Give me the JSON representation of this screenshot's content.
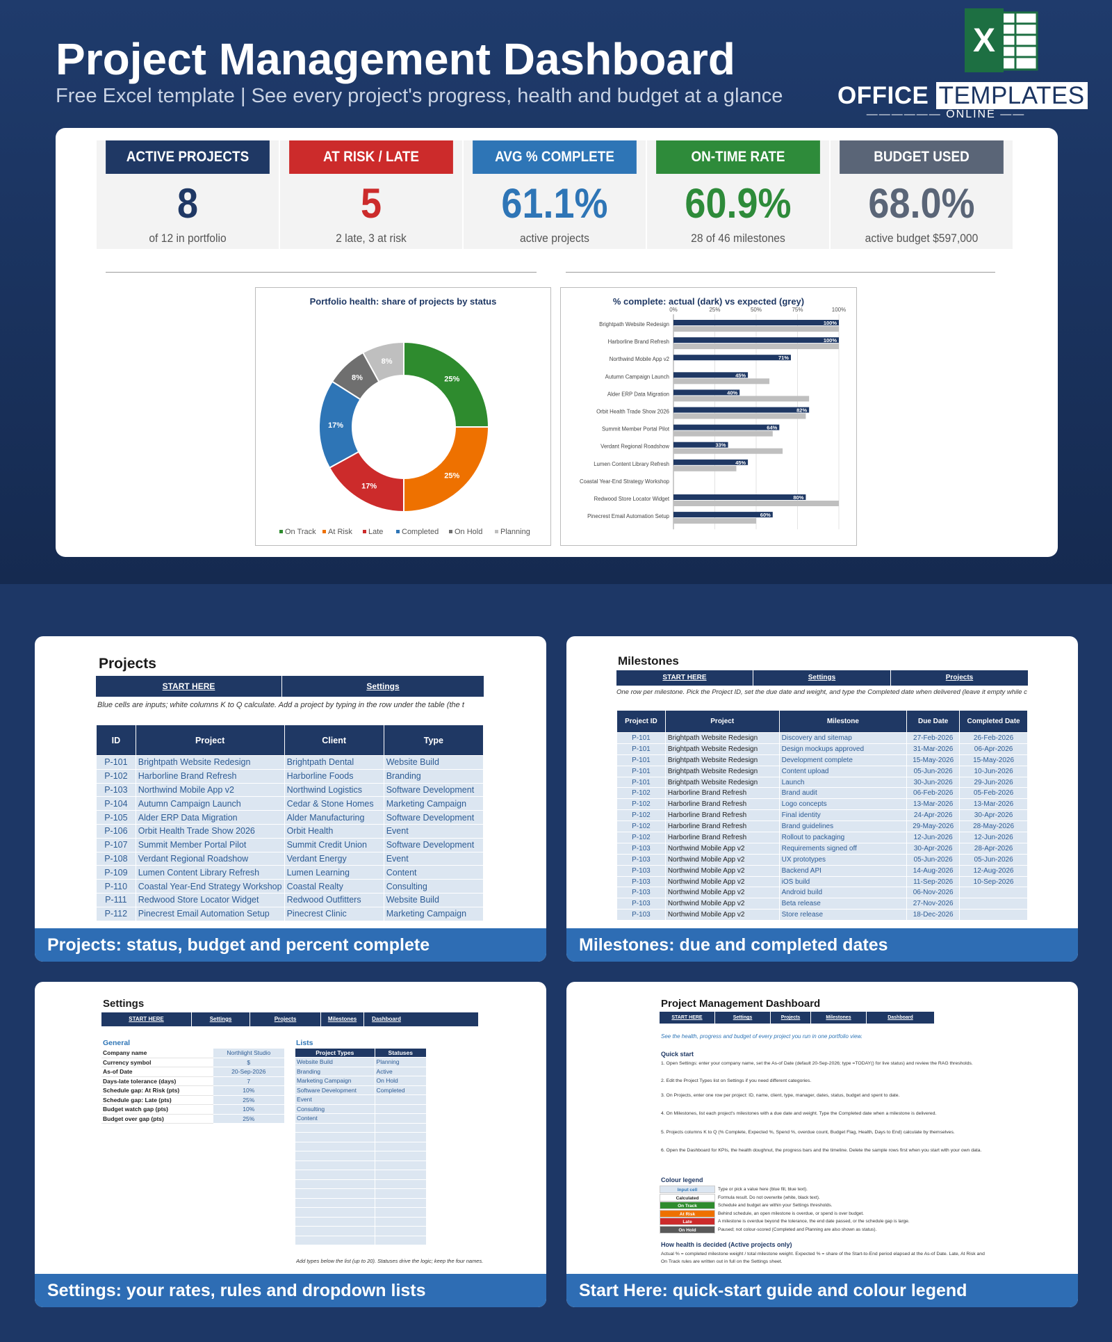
{
  "header": {
    "title": "Project Management Dashboard",
    "subtitle": "Free Excel template  |  See every project's progress, health and budget at a glance",
    "brand_office": "OFFICE",
    "brand_templates": "TEMPLATES",
    "brand_online": "ONLINE",
    "excel_logo_letter": "X"
  },
  "kpis": [
    {
      "label": "ACTIVE PROJECTS",
      "value": "8",
      "sub": "of 12 in portfolio",
      "color": "#1f3864",
      "value_color": "#1f3864"
    },
    {
      "label": "AT RISK / LATE",
      "value": "5",
      "sub": "2 late, 3 at risk",
      "color": "#cc2b2b",
      "value_color": "#cc2b2b"
    },
    {
      "label": "AVG % COMPLETE",
      "value": "61.1%",
      "sub": "active projects",
      "color": "#2e75b6",
      "value_color": "#2e75b6"
    },
    {
      "label": "ON-TIME RATE",
      "value": "60.9%",
      "sub": "28 of 46 milestones",
      "color": "#2e8b3a",
      "value_color": "#2e8b3a"
    },
    {
      "label": "BUDGET USED",
      "value": "68.0%",
      "sub": "active budget $597,000",
      "color": "#5a6577",
      "value_color": "#5a6577"
    }
  ],
  "chart_data": [
    {
      "type": "pie",
      "title": "Portfolio health: share of projects by status",
      "categories": [
        "On Track",
        "At Risk",
        "Late",
        "Completed",
        "On Hold",
        "Planning"
      ],
      "values": [
        25,
        25,
        17,
        17,
        8,
        8
      ],
      "labels": [
        "25%",
        "25%",
        "17%",
        "17%",
        "8%",
        "8%"
      ],
      "colors": [
        "#2e8b2e",
        "#ee7100",
        "#cc2b2b",
        "#2e75b6",
        "#6f6f6f",
        "#bfbfbf"
      ],
      "legend": "bottom"
    },
    {
      "type": "bar",
      "title": "% complete: actual (dark) vs expected (grey)",
      "categories": [
        "Brightpath Website Redesign",
        "Harborline Brand Refresh",
        "Northwind Mobile App v2",
        "Autumn Campaign Launch",
        "Alder ERP Data Migration",
        "Orbit Health Trade Show 2026",
        "Summit Member Portal Pilot",
        "Verdant Regional Roadshow",
        "Lumen Content Library Refresh",
        "Coastal Year-End Strategy Workshop",
        "Redwood Store Locator Widget",
        "Pinecrest Email Automation Setup"
      ],
      "series": [
        {
          "values": [
            100,
            100,
            71,
            45,
            40,
            82,
            64,
            33,
            45,
            null,
            80,
            60
          ],
          "color": "#1f3864"
        },
        {
          "values": [
            100,
            100,
            null,
            58,
            82,
            80,
            60,
            66,
            38,
            null,
            100,
            50
          ],
          "color": "#bfbfbf"
        }
      ],
      "xlim": [
        0,
        100
      ],
      "x_ticks": [
        "0%",
        "25%",
        "50%",
        "75%",
        "100%"
      ],
      "grid": true
    }
  ],
  "projects_sheet": {
    "title": "Projects",
    "nav": [
      "START HERE",
      "Settings"
    ],
    "note": "Blue cells are inputs; white columns K to Q calculate. Add a project by typing in the row under the table (the t",
    "columns": [
      "ID",
      "Project",
      "Client",
      "Type"
    ],
    "rows": [
      [
        "P-101",
        "Brightpath Website Redesign",
        "Brightpath Dental",
        "Website Build"
      ],
      [
        "P-102",
        "Harborline Brand Refresh",
        "Harborline Foods",
        "Branding"
      ],
      [
        "P-103",
        "Northwind Mobile App v2",
        "Northwind Logistics",
        "Software Development"
      ],
      [
        "P-104",
        "Autumn Campaign Launch",
        "Cedar & Stone Homes",
        "Marketing Campaign"
      ],
      [
        "P-105",
        "Alder ERP Data Migration",
        "Alder Manufacturing",
        "Software Development"
      ],
      [
        "P-106",
        "Orbit Health Trade Show 2026",
        "Orbit Health",
        "Event"
      ],
      [
        "P-107",
        "Summit Member Portal Pilot",
        "Summit Credit Union",
        "Software Development"
      ],
      [
        "P-108",
        "Verdant Regional Roadshow",
        "Verdant Energy",
        "Event"
      ],
      [
        "P-109",
        "Lumen Content Library Refresh",
        "Lumen Learning",
        "Content"
      ],
      [
        "P-110",
        "Coastal Year-End Strategy Workshop",
        "Coastal Realty",
        "Consulting"
      ],
      [
        "P-111",
        "Redwood Store Locator Widget",
        "Redwood Outfitters",
        "Website Build"
      ],
      [
        "P-112",
        "Pinecrest Email Automation Setup",
        "Pinecrest Clinic",
        "Marketing Campaign"
      ]
    ],
    "caption": "Projects: status, budget and percent complete"
  },
  "milestones_sheet": {
    "title": "Milestones",
    "nav": [
      "START HERE",
      "Settings",
      "Projects"
    ],
    "note": "One row per milestone. Pick the Project ID, set the due date and weight, and type the Completed date when delivered (leave it empty while c",
    "columns": [
      "Project ID",
      "Project",
      "Milestone",
      "Due Date",
      "Completed Date"
    ],
    "rows": [
      [
        "P-101",
        "Brightpath Website Redesign",
        "Discovery and sitemap",
        "27-Feb-2026",
        "26-Feb-2026"
      ],
      [
        "P-101",
        "Brightpath Website Redesign",
        "Design mockups approved",
        "31-Mar-2026",
        "06-Apr-2026"
      ],
      [
        "P-101",
        "Brightpath Website Redesign",
        "Development complete",
        "15-May-2026",
        "15-May-2026"
      ],
      [
        "P-101",
        "Brightpath Website Redesign",
        "Content upload",
        "05-Jun-2026",
        "10-Jun-2026"
      ],
      [
        "P-101",
        "Brightpath Website Redesign",
        "Launch",
        "30-Jun-2026",
        "29-Jun-2026"
      ],
      [
        "P-102",
        "Harborline Brand Refresh",
        "Brand audit",
        "06-Feb-2026",
        "05-Feb-2026"
      ],
      [
        "P-102",
        "Harborline Brand Refresh",
        "Logo concepts",
        "13-Mar-2026",
        "13-Mar-2026"
      ],
      [
        "P-102",
        "Harborline Brand Refresh",
        "Final identity",
        "24-Apr-2026",
        "30-Apr-2026"
      ],
      [
        "P-102",
        "Harborline Brand Refresh",
        "Brand guidelines",
        "29-May-2026",
        "28-May-2026"
      ],
      [
        "P-102",
        "Harborline Brand Refresh",
        "Rollout to packaging",
        "12-Jun-2026",
        "12-Jun-2026"
      ],
      [
        "P-103",
        "Northwind Mobile App v2",
        "Requirements signed off",
        "30-Apr-2026",
        "28-Apr-2026"
      ],
      [
        "P-103",
        "Northwind Mobile App v2",
        "UX prototypes",
        "05-Jun-2026",
        "05-Jun-2026"
      ],
      [
        "P-103",
        "Northwind Mobile App v2",
        "Backend API",
        "14-Aug-2026",
        "12-Aug-2026"
      ],
      [
        "P-103",
        "Northwind Mobile App v2",
        "iOS build",
        "11-Sep-2026",
        "10-Sep-2026"
      ],
      [
        "P-103",
        "Northwind Mobile App v2",
        "Android build",
        "06-Nov-2026",
        ""
      ],
      [
        "P-103",
        "Northwind Mobile App v2",
        "Beta release",
        "27-Nov-2026",
        ""
      ],
      [
        "P-103",
        "Northwind Mobile App v2",
        "Store release",
        "18-Dec-2026",
        ""
      ]
    ],
    "caption": "Milestones: due and completed dates"
  },
  "settings_sheet": {
    "title": "Settings",
    "nav": [
      "START HERE",
      "Settings",
      "Projects",
      "Milestones",
      "Dashboard"
    ],
    "general_label": "General",
    "general": [
      [
        "Company name",
        "Northlight Studio"
      ],
      [
        "Currency symbol",
        "$"
      ],
      [
        "As-of Date",
        "20-Sep-2026"
      ],
      [
        "Days-late tolerance (days)",
        "7"
      ],
      [
        "Schedule gap: At Risk (pts)",
        "10%"
      ],
      [
        "Schedule gap: Late (pts)",
        "25%"
      ],
      [
        "Budget watch gap (pts)",
        "10%"
      ],
      [
        "Budget over gap (pts)",
        "25%"
      ]
    ],
    "lists_label": "Lists",
    "list_columns": [
      "Project Types",
      "Statuses"
    ],
    "project_types": [
      "Website Build",
      "Branding",
      "Marketing Campaign",
      "Software Development",
      "Event",
      "Consulting",
      "Content"
    ],
    "statuses": [
      "Planning",
      "Active",
      "On Hold",
      "Completed"
    ],
    "footnote": "Add types below the list (up to 20). Statuses drive the logic; keep the four names.",
    "caption": "Settings: your rates, rules and dropdown lists"
  },
  "start_sheet": {
    "title": "Project Management Dashboard",
    "nav": [
      "START HERE",
      "Settings",
      "Projects",
      "Milestones",
      "Dashboard"
    ],
    "intro": "See the health, progress and budget of every project you run in one portfolio view.",
    "quick_start_label": "Quick start",
    "steps": [
      "1.  Open Settings: enter your company name, set the As-of Date (default 20-Sep-2026; type =TODAY() for live status) and review the RAG thresholds.",
      "2.  Edit the Project Types list on Settings if you need different categories.",
      "3.  On Projects, enter one row per project: ID, name, client, type, manager, dates, status, budget and spent to date.",
      "4.  On Milestones, list each project's milestones with a due date and weight. Type the Completed date when a milestone is delivered.",
      "5.  Projects columns K to Q (% Complete, Expected %, Spend %, overdue count, Budget Flag, Health, Days to End) calculate by themselves.",
      "6.  Open the Dashboard for KPIs, the health doughnut, the progress bars and the timeline. Delete the sample rows first when you start with your own data."
    ],
    "legend_label": "Colour legend",
    "legend": [
      {
        "name": "Input cell",
        "desc": "Type or pick a value here (blue fill, blue text).",
        "bg": "#dce6f1",
        "fg": "#2e75b6"
      },
      {
        "name": "Calculated",
        "desc": "Formula result. Do not overwrite (white, black text).",
        "bg": "#ffffff",
        "fg": "#222222"
      },
      {
        "name": "On Track",
        "desc": "Schedule and budget are within your Settings thresholds.",
        "bg": "#2e8b2e",
        "fg": "#ffffff"
      },
      {
        "name": "At Risk",
        "desc": "Behind schedule, an open milestone is overdue, or spend is over budget.",
        "bg": "#ee7100",
        "fg": "#ffffff"
      },
      {
        "name": "Late",
        "desc": "A milestone is overdue beyond the tolerance, the end date passed, or the schedule gap is large.",
        "bg": "#cc2b2b",
        "fg": "#ffffff"
      },
      {
        "name": "On Hold",
        "desc": "Paused; not colour-scored (Completed and Planning are also shown as status).",
        "bg": "#595959",
        "fg": "#ffffff"
      }
    ],
    "how_label": "How health is decided (Active projects only)",
    "how_text": "Actual % = completed milestone weight / total milestone weight.  Expected % = share of the Start-to-End period elapsed at the As-of Date.  Late, At Risk and On Track rules are written out in full on the Settings sheet.",
    "caption": "Start Here: quick-start guide and colour legend"
  }
}
